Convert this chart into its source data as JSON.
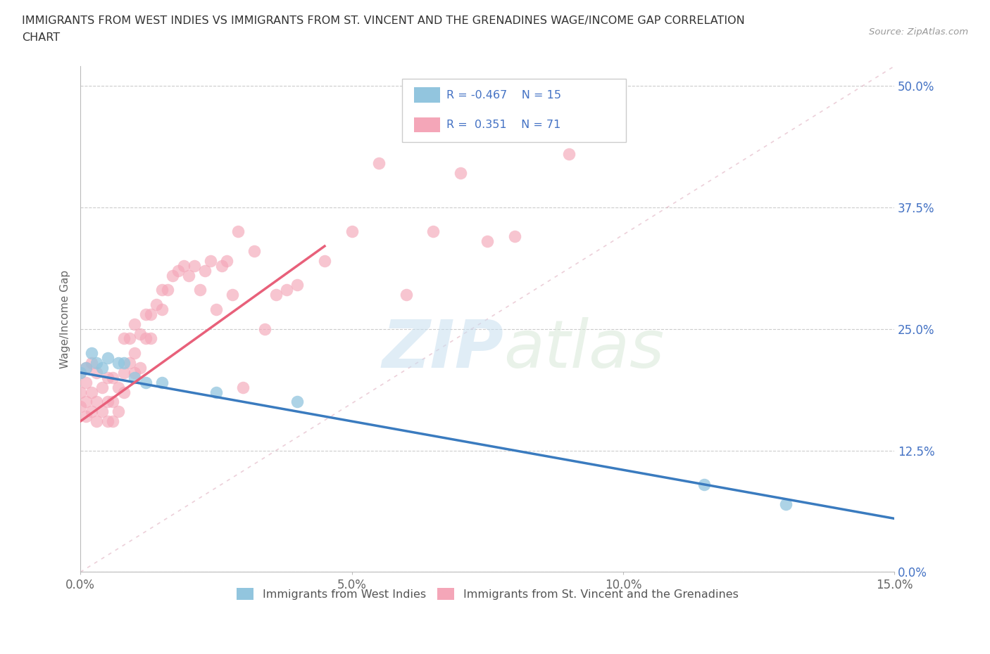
{
  "title_line1": "IMMIGRANTS FROM WEST INDIES VS IMMIGRANTS FROM ST. VINCENT AND THE GRENADINES WAGE/INCOME GAP CORRELATION",
  "title_line2": "CHART",
  "source_text": "Source: ZipAtlas.com",
  "ylabel": "Wage/Income Gap",
  "xlim": [
    0.0,
    0.15
  ],
  "ylim": [
    0.0,
    0.52
  ],
  "yticks": [
    0.0,
    0.125,
    0.25,
    0.375,
    0.5
  ],
  "ytick_labels": [
    "0.0%",
    "12.5%",
    "25.0%",
    "37.5%",
    "50.0%"
  ],
  "xticks": [
    0.0,
    0.05,
    0.1,
    0.15
  ],
  "xtick_labels": [
    "0.0%",
    "5.0%",
    "10.0%",
    "15.0%"
  ],
  "legend_r1": "R = -0.467",
  "legend_n1": "N = 15",
  "legend_r2": "R =  0.351",
  "legend_n2": "N = 71",
  "color_blue": "#92c5de",
  "color_pink": "#f4a6b8",
  "color_blue_line": "#3a7bbf",
  "color_pink_line": "#e8607a",
  "watermark_zip": "ZIP",
  "watermark_atlas": "atlas",
  "west_indies_x": [
    0.0,
    0.001,
    0.002,
    0.003,
    0.004,
    0.005,
    0.007,
    0.008,
    0.01,
    0.012,
    0.015,
    0.025,
    0.04,
    0.115,
    0.13
  ],
  "west_indies_y": [
    0.205,
    0.21,
    0.225,
    0.215,
    0.21,
    0.22,
    0.215,
    0.215,
    0.2,
    0.195,
    0.195,
    0.185,
    0.175,
    0.09,
    0.07
  ],
  "stvincent_x": [
    0.0,
    0.0,
    0.0,
    0.001,
    0.001,
    0.001,
    0.001,
    0.002,
    0.002,
    0.002,
    0.003,
    0.003,
    0.003,
    0.004,
    0.004,
    0.005,
    0.005,
    0.005,
    0.006,
    0.006,
    0.006,
    0.007,
    0.007,
    0.008,
    0.008,
    0.008,
    0.009,
    0.009,
    0.01,
    0.01,
    0.01,
    0.011,
    0.011,
    0.012,
    0.012,
    0.013,
    0.013,
    0.014,
    0.015,
    0.015,
    0.016,
    0.017,
    0.018,
    0.019,
    0.02,
    0.021,
    0.022,
    0.023,
    0.024,
    0.025,
    0.026,
    0.027,
    0.028,
    0.029,
    0.03,
    0.032,
    0.034,
    0.036,
    0.038,
    0.04,
    0.045,
    0.05,
    0.055,
    0.06,
    0.065,
    0.07,
    0.075,
    0.08,
    0.085,
    0.09,
    0.095
  ],
  "stvincent_y": [
    0.17,
    0.185,
    0.205,
    0.16,
    0.175,
    0.195,
    0.21,
    0.165,
    0.185,
    0.215,
    0.155,
    0.175,
    0.205,
    0.165,
    0.19,
    0.155,
    0.175,
    0.2,
    0.155,
    0.175,
    0.2,
    0.165,
    0.19,
    0.185,
    0.205,
    0.24,
    0.215,
    0.24,
    0.205,
    0.225,
    0.255,
    0.21,
    0.245,
    0.24,
    0.265,
    0.24,
    0.265,
    0.275,
    0.29,
    0.27,
    0.29,
    0.305,
    0.31,
    0.315,
    0.305,
    0.315,
    0.29,
    0.31,
    0.32,
    0.27,
    0.315,
    0.32,
    0.285,
    0.35,
    0.19,
    0.33,
    0.25,
    0.285,
    0.29,
    0.295,
    0.32,
    0.35,
    0.42,
    0.285,
    0.35,
    0.41,
    0.34,
    0.345,
    0.47,
    0.43,
    0.46
  ],
  "blue_line_x": [
    0.0,
    0.15
  ],
  "blue_line_y": [
    0.205,
    0.055
  ],
  "pink_line_x": [
    0.0,
    0.045
  ],
  "pink_line_y": [
    0.155,
    0.335
  ],
  "ref_line_x": [
    0.0,
    0.15
  ],
  "ref_line_y": [
    0.0,
    0.52
  ]
}
